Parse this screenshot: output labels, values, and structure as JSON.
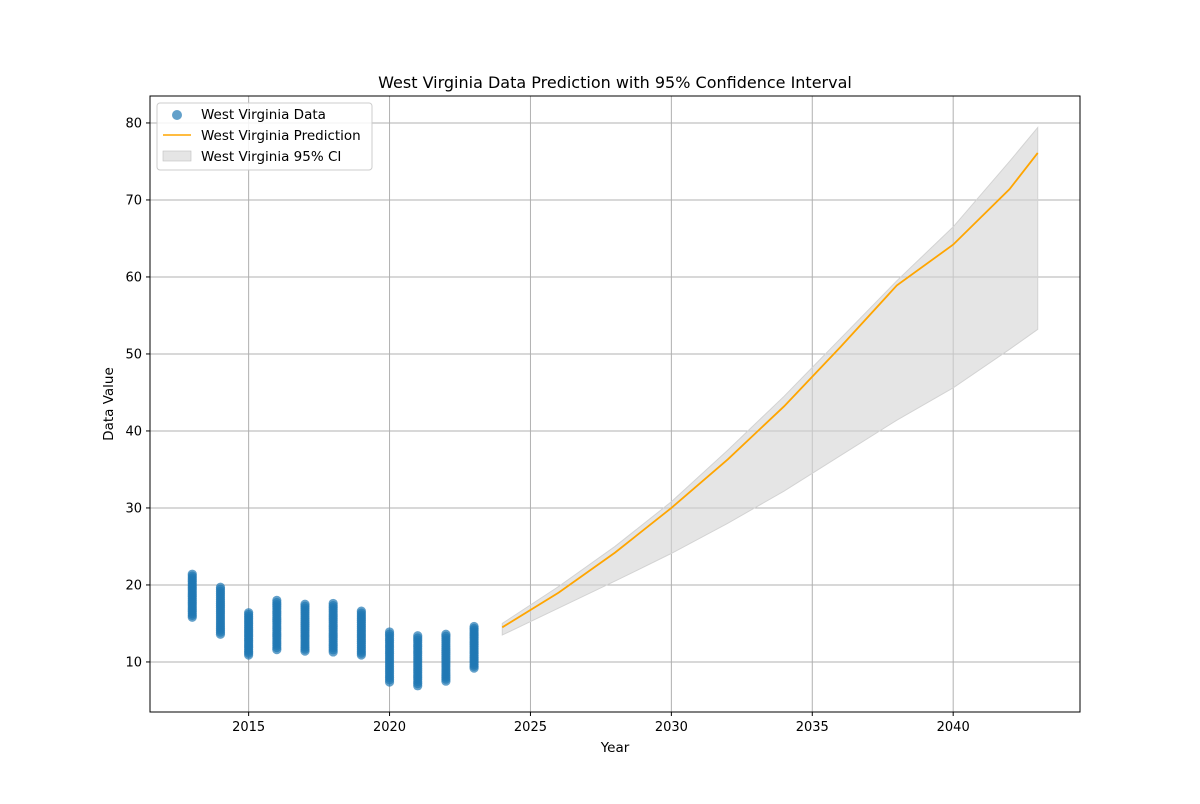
{
  "chart_data": {
    "type": "scatter",
    "title": "West Virginia Data Prediction with 95% Confidence Interval",
    "xlabel": "Year",
    "ylabel": "Data Value",
    "xlim": [
      2011.5,
      2044.5
    ],
    "ylim": [
      3.5,
      83.5
    ],
    "x_ticks": [
      2015,
      2020,
      2025,
      2030,
      2035,
      2040
    ],
    "y_ticks": [
      10,
      20,
      30,
      40,
      50,
      60,
      70,
      80
    ],
    "grid": true,
    "legend_position": "upper left",
    "colors": {
      "data": "#1f77b4",
      "prediction": "#ffa500",
      "ci": "#d3d3d3"
    },
    "series": [
      {
        "name": "West Virginia Data",
        "kind": "scatter",
        "groups": [
          {
            "year": 2013,
            "min": 15.8,
            "max": 21.4
          },
          {
            "year": 2014,
            "min": 13.6,
            "max": 19.7
          },
          {
            "year": 2015,
            "min": 10.9,
            "max": 16.4
          },
          {
            "year": 2016,
            "min": 11.6,
            "max": 18.0
          },
          {
            "year": 2017,
            "min": 11.4,
            "max": 17.5
          },
          {
            "year": 2018,
            "min": 11.3,
            "max": 17.6
          },
          {
            "year": 2019,
            "min": 10.9,
            "max": 16.6
          },
          {
            "year": 2020,
            "min": 7.4,
            "max": 13.9
          },
          {
            "year": 2021,
            "min": 6.9,
            "max": 13.4
          },
          {
            "year": 2022,
            "min": 7.5,
            "max": 13.6
          },
          {
            "year": 2023,
            "min": 9.2,
            "max": 14.6
          }
        ]
      },
      {
        "name": "West Virginia Prediction",
        "kind": "line",
        "x": [
          2024,
          2026,
          2028,
          2030,
          2032,
          2034,
          2036,
          2038,
          2040,
          2042,
          2043
        ],
        "y": [
          14.5,
          19.0,
          24.2,
          30.0,
          36.3,
          43.2,
          50.9,
          58.9,
          64.2,
          71.4,
          76.1
        ]
      },
      {
        "name": "West Virginia 95% CI",
        "kind": "band",
        "x": [
          2024,
          2026,
          2028,
          2030,
          2032,
          2034,
          2036,
          2038,
          2040,
          2042,
          2043
        ],
        "lower": [
          13.5,
          17.0,
          20.5,
          24.1,
          28.0,
          32.2,
          36.8,
          41.4,
          45.6,
          50.6,
          53.2
        ],
        "upper": [
          15.0,
          19.8,
          25.0,
          30.8,
          37.5,
          44.5,
          52.0,
          59.5,
          66.5,
          75.0,
          79.4
        ]
      }
    ]
  }
}
